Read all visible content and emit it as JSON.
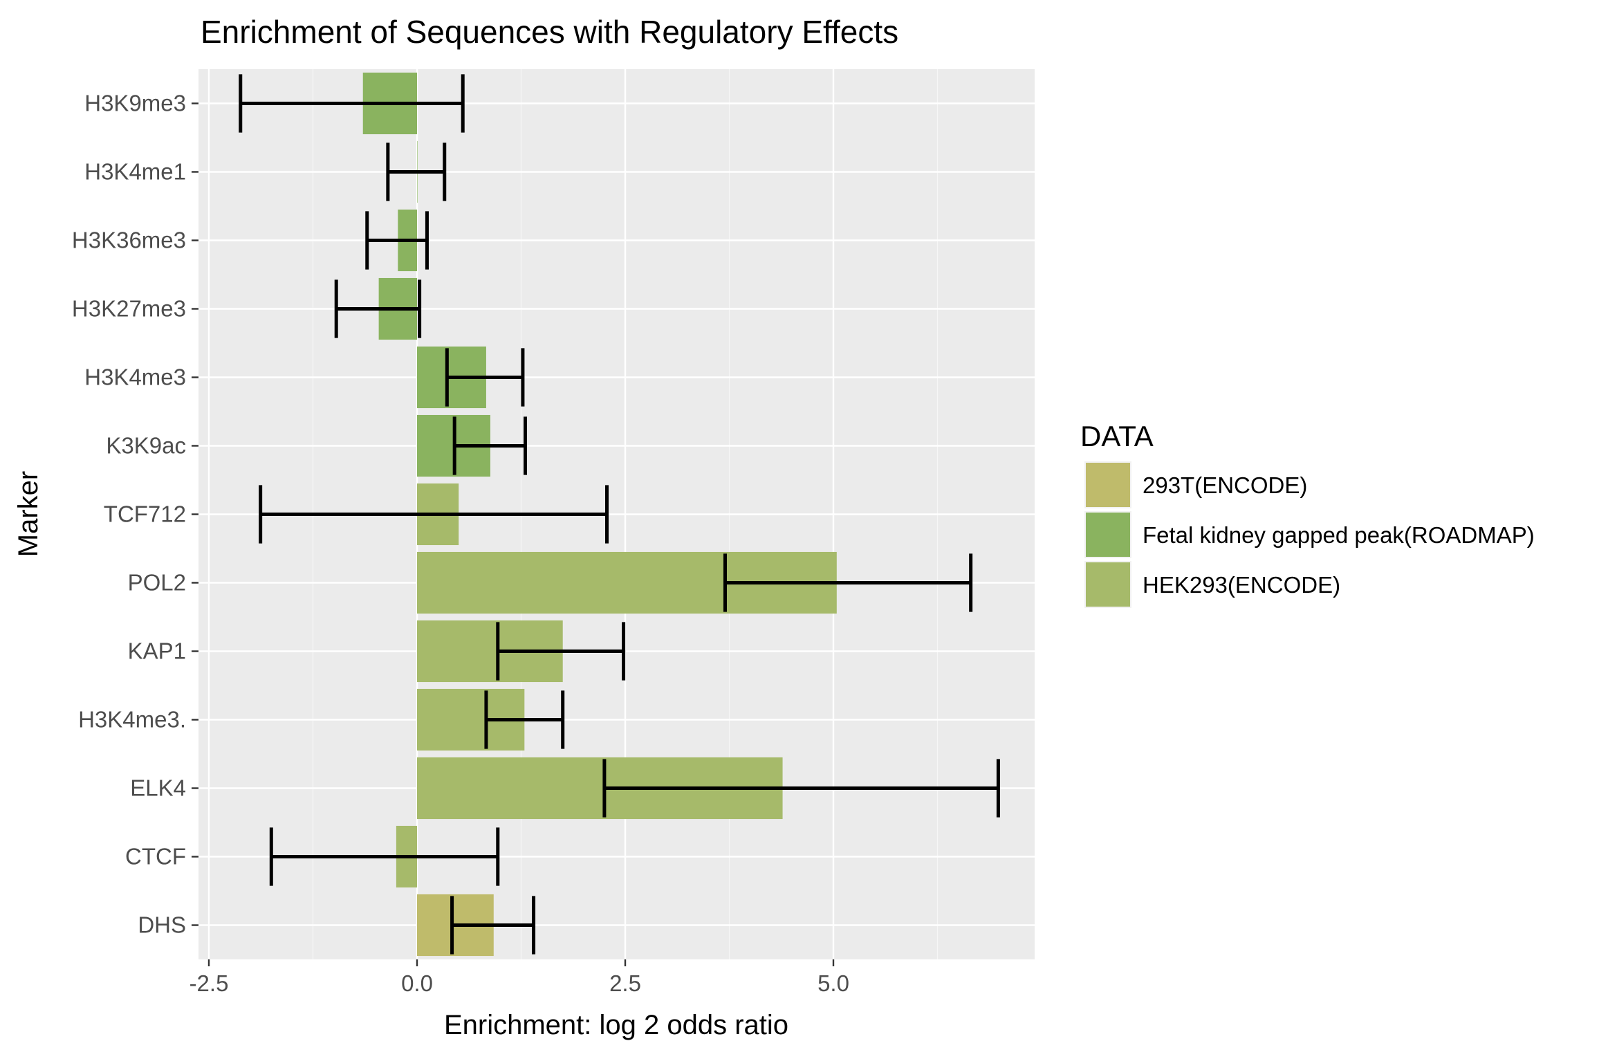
{
  "chart_data": {
    "type": "bar",
    "orientation": "horizontal",
    "title": "Enrichment of Sequences with Regulatory Effects",
    "xlabel": "Enrichment: log 2 odds ratio",
    "ylabel": "Marker",
    "xlim": [
      -2.5,
      7.5
    ],
    "xticks": [
      -2.5,
      0.0,
      2.5,
      5.0
    ],
    "xtick_labels": [
      "-2.5",
      "0.0",
      "2.5",
      "5.0"
    ],
    "grid": true,
    "legend": {
      "title": "DATA",
      "position": "right",
      "entries": [
        {
          "label": "293T(ENCODE)",
          "color": "#bfbb6b"
        },
        {
          "label": "Fetal kidney gapped peak(ROADMAP)",
          "color": "#8ab35f"
        },
        {
          "label": "HEK293(ENCODE)",
          "color": "#a6ba6a"
        }
      ]
    },
    "categories": [
      "H3K9me3",
      "H3K4me1",
      "H3K36me3",
      "H3K27me3",
      "H3K4me3",
      "K3K9ac",
      "TCF712",
      "POL2",
      "KAP1",
      "H3K4me3.",
      "ELK4",
      "CTCF",
      "DHS"
    ],
    "series_index": [
      1,
      1,
      1,
      1,
      1,
      1,
      2,
      2,
      2,
      2,
      2,
      2,
      0
    ],
    "values": [
      -0.65,
      0.0,
      -0.23,
      -0.46,
      0.83,
      0.88,
      0.5,
      5.04,
      1.75,
      1.29,
      4.39,
      -0.25,
      0.92
    ],
    "ci_low": [
      -2.12,
      -0.35,
      -0.6,
      -0.97,
      0.36,
      0.45,
      -1.88,
      3.7,
      0.97,
      0.83,
      2.25,
      -1.75,
      0.42
    ],
    "ci_high": [
      0.55,
      0.33,
      0.12,
      0.03,
      1.27,
      1.3,
      2.28,
      6.65,
      2.48,
      1.75,
      6.98,
      0.97,
      1.4
    ]
  }
}
